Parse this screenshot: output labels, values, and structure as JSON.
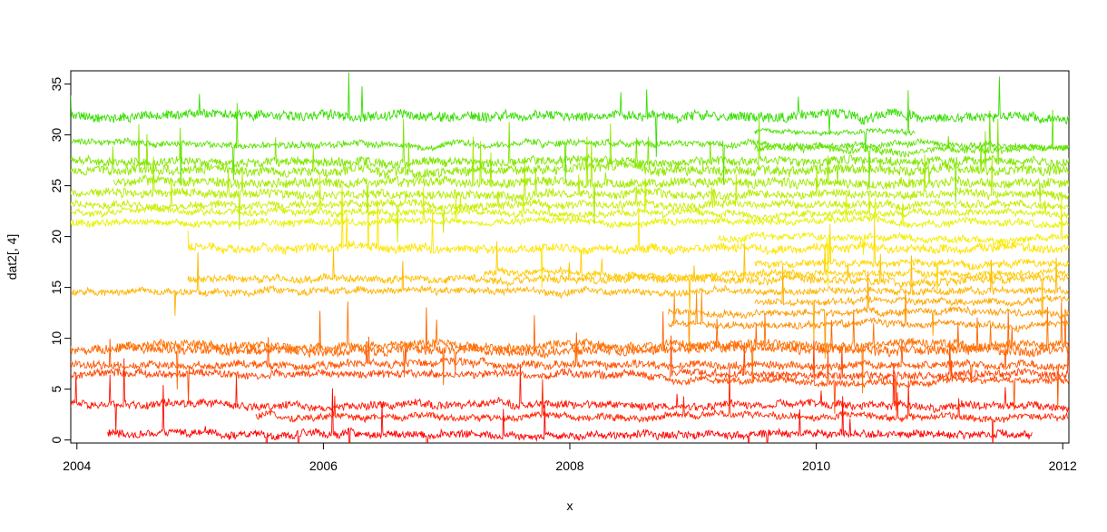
{
  "chart_data": {
    "type": "line",
    "title": "",
    "xlabel": "x",
    "ylabel": "dat2[, 4]",
    "xlim": [
      2003.95,
      2012.05
    ],
    "ylim": [
      -0.3,
      36.3
    ],
    "x_ticks": [
      2004,
      2006,
      2008,
      2010,
      2012
    ],
    "y_ticks": [
      0,
      5,
      10,
      15,
      20,
      25,
      30,
      35
    ],
    "x_tick_labels": [
      "2004",
      "2006",
      "2008",
      "2010",
      "2012"
    ],
    "y_tick_labels": [
      "0",
      "5",
      "10",
      "15",
      "20",
      "25",
      "30",
      "35"
    ],
    "grid": false,
    "legend": "none",
    "series": [
      {
        "color": "#ff0000",
        "x_start": 2004.25,
        "x_end": 2011.75,
        "level": 0.6,
        "noise": 0.35,
        "spikes": 14
      },
      {
        "color": "#ff1400",
        "x_start": 2003.95,
        "x_end": 2012.05,
        "level": 3.4,
        "noise": 0.35,
        "spikes": 10
      },
      {
        "color": "#ff2400",
        "x_start": 2005.45,
        "x_end": 2012.05,
        "level": 2.3,
        "noise": 0.3,
        "spikes": 8
      },
      {
        "color": "#ff4000",
        "x_start": 2003.95,
        "x_end": 2012.05,
        "level": 6.4,
        "noise": 0.35,
        "spikes": 8
      },
      {
        "color": "#ff4d00",
        "x_start": 2008.8,
        "x_end": 2012.05,
        "level": 5.8,
        "noise": 0.3,
        "spikes": 4
      },
      {
        "color": "#ff5500",
        "x_start": 2003.95,
        "x_end": 2012.05,
        "level": 7.4,
        "noise": 0.35,
        "spikes": 10
      },
      {
        "color": "#ff6400",
        "x_start": 2003.95,
        "x_end": 2012.05,
        "level": 8.8,
        "noise": 0.45,
        "spikes": 16
      },
      {
        "color": "#ff7200",
        "x_start": 2004.35,
        "x_end": 2012.05,
        "level": 9.3,
        "noise": 0.4,
        "spikes": 12
      },
      {
        "color": "#ff8c00",
        "x_start": 2008.8,
        "x_end": 2012.05,
        "level": 11.4,
        "noise": 0.3,
        "spikes": 4
      },
      {
        "color": "#ff9a00",
        "x_start": 2008.8,
        "x_end": 2012.05,
        "level": 12.6,
        "noise": 0.3,
        "spikes": 4
      },
      {
        "color": "#ffa800",
        "x_start": 2009.5,
        "x_end": 2012.05,
        "level": 13.6,
        "noise": 0.3,
        "spikes": 3
      },
      {
        "color": "#ffb400",
        "x_start": 2003.95,
        "x_end": 2012.05,
        "level": 14.6,
        "noise": 0.3,
        "spikes": 6
      },
      {
        "color": "#ffbf00",
        "x_start": 2004.9,
        "x_end": 2012.05,
        "level": 15.8,
        "noise": 0.35,
        "spikes": 8
      },
      {
        "color": "#ffcc00",
        "x_start": 2007.3,
        "x_end": 2012.05,
        "level": 16.3,
        "noise": 0.3,
        "spikes": 4
      },
      {
        "color": "#ffd600",
        "x_start": 2009.5,
        "x_end": 2012.05,
        "level": 17.3,
        "noise": 0.3,
        "spikes": 3
      },
      {
        "color": "#ffe400",
        "x_start": 2004.9,
        "x_end": 2012.05,
        "level": 18.9,
        "noise": 0.4,
        "spikes": 8
      },
      {
        "color": "#f4ee00",
        "x_start": 2009.2,
        "x_end": 2012.05,
        "level": 19.8,
        "noise": 0.3,
        "spikes": 3
      },
      {
        "color": "#e6f200",
        "x_start": 2003.95,
        "x_end": 2012.05,
        "level": 21.4,
        "noise": 0.3,
        "spikes": 6
      },
      {
        "color": "#d6f000",
        "x_start": 2003.95,
        "x_end": 2012.05,
        "level": 22.3,
        "noise": 0.3,
        "spikes": 6
      },
      {
        "color": "#c6ee00",
        "x_start": 2003.95,
        "x_end": 2012.05,
        "level": 23.1,
        "noise": 0.35,
        "spikes": 8
      },
      {
        "color": "#b4ec00",
        "x_start": 2003.95,
        "x_end": 2012.05,
        "level": 24.2,
        "noise": 0.4,
        "spikes": 10
      },
      {
        "color": "#a2ea00",
        "x_start": 2004.3,
        "x_end": 2012.05,
        "level": 25.3,
        "noise": 0.45,
        "spikes": 10
      },
      {
        "color": "#90e800",
        "x_start": 2003.95,
        "x_end": 2012.05,
        "level": 26.6,
        "noise": 0.45,
        "spikes": 10
      },
      {
        "color": "#7ee600",
        "x_start": 2003.95,
        "x_end": 2012.05,
        "level": 27.4,
        "noise": 0.4,
        "spikes": 10
      },
      {
        "color": "#6ce400",
        "x_start": 2009.5,
        "x_end": 2012.05,
        "level": 28.6,
        "noise": 0.3,
        "spikes": 3
      },
      {
        "color": "#5ae200",
        "x_start": 2003.95,
        "x_end": 2012.05,
        "level": 29.1,
        "noise": 0.3,
        "spikes": 6
      },
      {
        "color": "#48e000",
        "x_start": 2009.5,
        "x_end": 2010.8,
        "level": 30.3,
        "noise": 0.2,
        "spikes": 2
      },
      {
        "color": "#36de00",
        "x_start": 2003.95,
        "x_end": 2012.05,
        "level": 31.9,
        "noise": 0.45,
        "spikes": 10
      }
    ]
  }
}
